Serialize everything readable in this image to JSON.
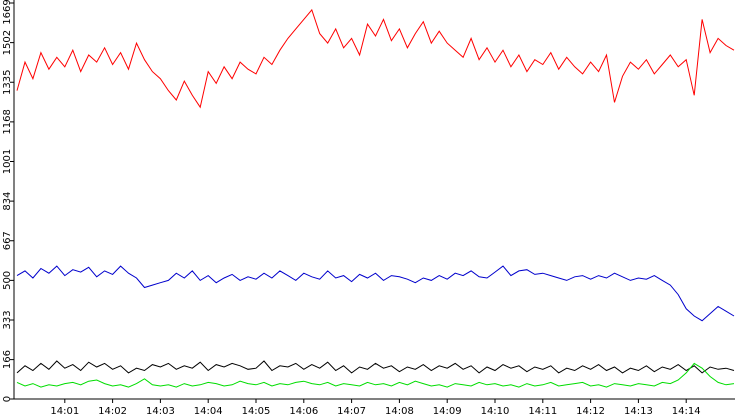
{
  "chart_data": {
    "type": "line",
    "categories": [
      null,
      null,
      null,
      null,
      null,
      null,
      "14:01",
      null,
      null,
      null,
      null,
      null,
      "14:02",
      null,
      null,
      null,
      null,
      null,
      "14:03",
      null,
      null,
      null,
      null,
      null,
      "14:04",
      null,
      null,
      null,
      null,
      null,
      "14:05",
      null,
      null,
      null,
      null,
      null,
      "14:06",
      null,
      null,
      null,
      null,
      null,
      "14:07",
      null,
      null,
      null,
      null,
      null,
      "14:08",
      null,
      null,
      null,
      null,
      null,
      "14:09",
      null,
      null,
      null,
      null,
      null,
      "14:10",
      null,
      null,
      null,
      null,
      null,
      "14:11",
      null,
      null,
      null,
      null,
      null,
      "14:12",
      null,
      null,
      null,
      null,
      null,
      "14:13",
      null,
      null,
      null,
      null,
      null,
      "14:14",
      null,
      null,
      null,
      null,
      null,
      null
    ],
    "series": [
      {
        "color": "#ff0000",
        "values": [
          1300,
          1420,
          1350,
          1460,
          1390,
          1440,
          1400,
          1470,
          1380,
          1450,
          1420,
          1480,
          1410,
          1460,
          1390,
          1500,
          1430,
          1380,
          1350,
          1300,
          1260,
          1340,
          1280,
          1230,
          1380,
          1330,
          1400,
          1350,
          1420,
          1390,
          1370,
          1440,
          1410,
          1470,
          1520,
          1560,
          1600,
          1640,
          1540,
          1500,
          1560,
          1480,
          1520,
          1450,
          1580,
          1530,
          1600,
          1510,
          1560,
          1480,
          1540,
          1590,
          1500,
          1550,
          1500,
          1470,
          1440,
          1520,
          1430,
          1480,
          1420,
          1470,
          1400,
          1450,
          1380,
          1430,
          1410,
          1460,
          1390,
          1440,
          1400,
          1370,
          1420,
          1380,
          1450,
          1250,
          1360,
          1420,
          1390,
          1430,
          1370,
          1410,
          1450,
          1400,
          1430,
          1280,
          1600,
          1460,
          1520,
          1490,
          1470
        ]
      },
      {
        "color": "#0000cc",
        "values": [
          520,
          540,
          510,
          550,
          530,
          560,
          520,
          545,
          535,
          555,
          515,
          540,
          525,
          560,
          530,
          510,
          470,
          480,
          490,
          500,
          530,
          510,
          540,
          500,
          520,
          490,
          510,
          525,
          500,
          515,
          505,
          530,
          510,
          540,
          520,
          500,
          530,
          515,
          505,
          540,
          510,
          520,
          495,
          525,
          510,
          530,
          500,
          520,
          515,
          505,
          490,
          510,
          500,
          520,
          505,
          530,
          520,
          540,
          515,
          510,
          535,
          560,
          520,
          540,
          545,
          525,
          530,
          520,
          510,
          500,
          515,
          520,
          505,
          520,
          510,
          530,
          515,
          500,
          510,
          505,
          520,
          500,
          480,
          440,
          380,
          350,
          330,
          360,
          390,
          370,
          350
        ]
      },
      {
        "color": "#000000",
        "values": [
          110,
          140,
          120,
          150,
          125,
          160,
          130,
          145,
          120,
          155,
          135,
          150,
          125,
          140,
          110,
          130,
          120,
          145,
          135,
          150,
          125,
          140,
          130,
          155,
          120,
          145,
          135,
          150,
          140,
          125,
          130,
          160,
          120,
          140,
          135,
          150,
          125,
          145,
          130,
          155,
          120,
          140,
          110,
          135,
          125,
          150,
          130,
          140,
          115,
          135,
          125,
          145,
          120,
          140,
          130,
          150,
          125,
          140,
          110,
          135,
          120,
          145,
          130,
          140,
          115,
          135,
          125,
          140,
          110,
          130,
          120,
          140,
          125,
          145,
          120,
          135,
          110,
          130,
          120,
          140,
          115,
          135,
          125,
          145,
          120,
          140,
          110,
          135,
          125,
          130,
          120
        ]
      },
      {
        "color": "#00dd00",
        "values": [
          70,
          55,
          65,
          50,
          60,
          55,
          65,
          70,
          60,
          75,
          80,
          65,
          55,
          60,
          50,
          65,
          85,
          60,
          55,
          60,
          50,
          65,
          55,
          60,
          70,
          65,
          55,
          60,
          75,
          65,
          60,
          70,
          55,
          65,
          60,
          70,
          75,
          65,
          60,
          70,
          55,
          65,
          60,
          55,
          70,
          60,
          65,
          55,
          70,
          60,
          75,
          65,
          55,
          60,
          50,
          65,
          60,
          55,
          70,
          60,
          65,
          55,
          60,
          50,
          65,
          55,
          60,
          70,
          55,
          60,
          65,
          70,
          55,
          60,
          50,
          65,
          60,
          55,
          65,
          60,
          55,
          70,
          65,
          80,
          110,
          150,
          130,
          95,
          70,
          60,
          65
        ]
      }
    ],
    "ylim": [
      0,
      1669
    ],
    "yticks": [
      0,
      166,
      333,
      500,
      667,
      834,
      1001,
      1168,
      1335,
      1502,
      1669
    ]
  }
}
